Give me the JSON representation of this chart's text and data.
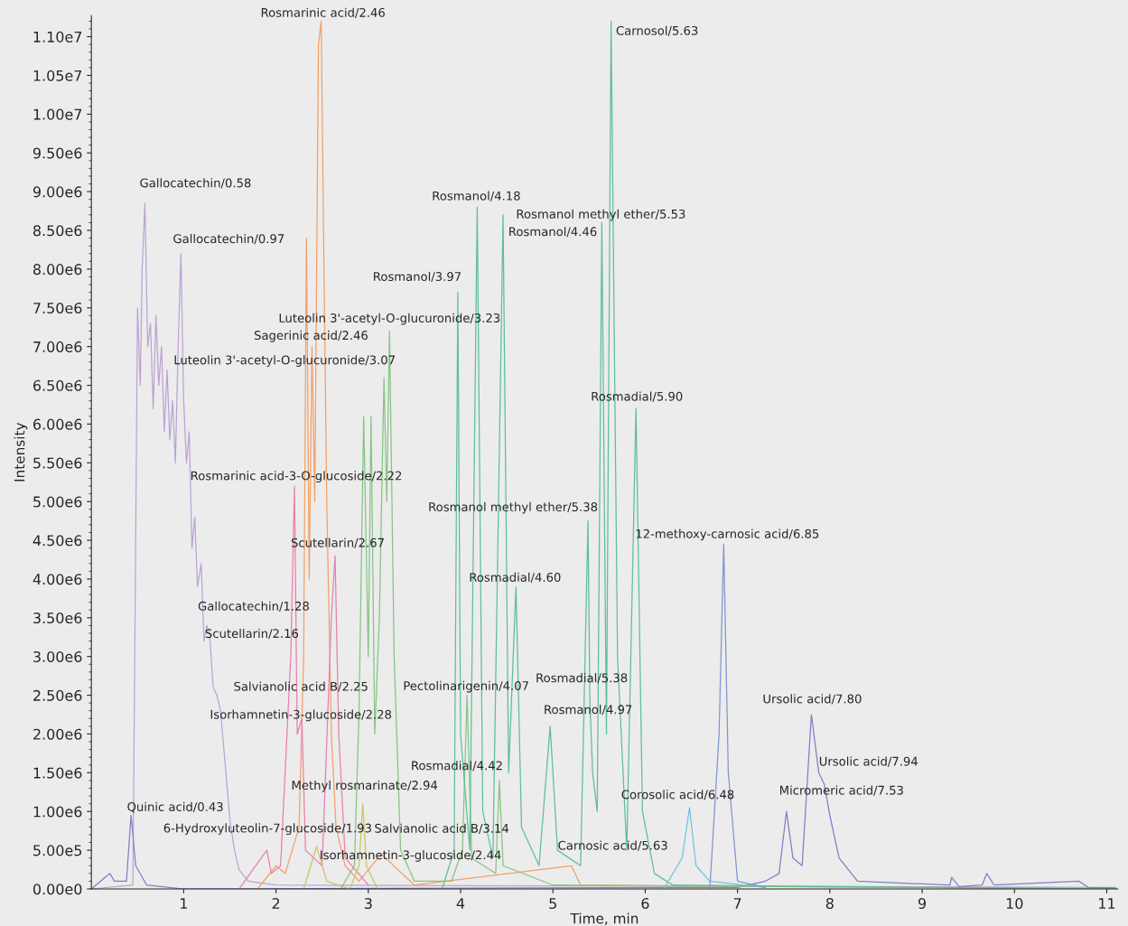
{
  "chart_data": {
    "type": "line",
    "xlabel": "Time, min",
    "ylabel": "Intensity",
    "xlim": [
      0,
      11.12
    ],
    "ylim": [
      0,
      11270000
    ],
    "xticks": [
      1,
      2,
      3,
      4,
      5,
      6,
      7,
      8,
      9,
      10,
      11
    ],
    "yticks": [
      {
        "value": 0,
        "label": "0.00e0"
      },
      {
        "value": 500000,
        "label": "5.00e5"
      },
      {
        "value": 1000000,
        "label": "1.00e6"
      },
      {
        "value": 1500000,
        "label": "1.50e6"
      },
      {
        "value": 2000000,
        "label": "2.00e6"
      },
      {
        "value": 2500000,
        "label": "2.50e6"
      },
      {
        "value": 3000000,
        "label": "3.00e6"
      },
      {
        "value": 3500000,
        "label": "3.50e6"
      },
      {
        "value": 4000000,
        "label": "4.00e6"
      },
      {
        "value": 4500000,
        "label": "4.50e6"
      },
      {
        "value": 5000000,
        "label": "5.00e6"
      },
      {
        "value": 5500000,
        "label": "5.50e6"
      },
      {
        "value": 6000000,
        "label": "6.00e6"
      },
      {
        "value": 6500000,
        "label": "6.50e6"
      },
      {
        "value": 7000000,
        "label": "7.00e6"
      },
      {
        "value": 7500000,
        "label": "7.50e6"
      },
      {
        "value": 8000000,
        "label": "8.00e6"
      },
      {
        "value": 8500000,
        "label": "8.50e6"
      },
      {
        "value": 9000000,
        "label": "9.00e6"
      },
      {
        "value": 9500000,
        "label": "9.50e6"
      },
      {
        "value": 10000000,
        "label": "1.00e7"
      },
      {
        "value": 10500000,
        "label": "1.05e7"
      },
      {
        "value": 11000000,
        "label": "1.10e7"
      }
    ],
    "grid": false,
    "legend": false,
    "marker": "none",
    "line_style": "solid",
    "series": [
      {
        "color": "#bba3d3",
        "x": [
          0.0,
          0.45,
          0.47,
          0.5,
          0.53,
          0.55,
          0.58,
          0.61,
          0.64,
          0.67,
          0.7,
          0.73,
          0.76,
          0.79,
          0.82,
          0.85,
          0.88,
          0.91,
          0.94,
          0.97,
          1.0,
          1.03,
          1.06,
          1.09,
          1.12,
          1.15,
          1.19,
          1.22,
          1.25,
          1.28,
          1.32,
          1.36,
          1.4,
          1.45,
          1.5,
          1.55,
          1.6,
          1.7,
          2.0,
          11.1
        ],
        "values": [
          0,
          50000,
          3000000,
          7500000,
          6500000,
          8000000,
          8850000,
          7000000,
          7300000,
          6200000,
          7400000,
          6500000,
          7000000,
          5900000,
          6700000,
          5800000,
          6300000,
          5500000,
          7000000,
          8200000,
          6300000,
          5500000,
          5900000,
          4400000,
          4800000,
          3900000,
          4200000,
          3200000,
          3400000,
          3300000,
          2600000,
          2500000,
          2300000,
          1600000,
          900000,
          500000,
          250000,
          100000,
          50000,
          20000
        ]
      },
      {
        "color": "#7f7fc4",
        "x": [
          0.0,
          0.2,
          0.25,
          0.38,
          0.43,
          0.48,
          0.6,
          1.0,
          7.0,
          7.3,
          7.45,
          7.53,
          7.6,
          7.7,
          7.8,
          7.88,
          7.94,
          8.0,
          8.1,
          8.3,
          9.3,
          9.32,
          9.4,
          9.65,
          9.7,
          9.78,
          10.7,
          10.8,
          11.1
        ],
        "values": [
          0,
          200000,
          100000,
          100000,
          950000,
          300000,
          50000,
          0,
          20000,
          100000,
          200000,
          1000000,
          400000,
          300000,
          2250000,
          1500000,
          1350000,
          950000,
          400000,
          100000,
          50000,
          150000,
          30000,
          50000,
          200000,
          50000,
          100000,
          20000,
          10000
        ]
      },
      {
        "color": "#f2a065",
        "x": [
          1.8,
          2.0,
          2.1,
          2.25,
          2.3,
          2.33,
          2.36,
          2.39,
          2.42,
          2.46,
          2.49,
          2.52,
          2.55,
          2.6,
          2.65,
          2.75,
          2.9,
          3.14,
          3.5,
          5.2,
          5.3,
          11.1
        ],
        "values": [
          0,
          300000,
          200000,
          800000,
          3000000,
          8400000,
          4000000,
          7000000,
          5000000,
          10900000,
          11200000,
          8000000,
          5000000,
          2000000,
          800000,
          300000,
          100000,
          450000,
          50000,
          300000,
          50000,
          0
        ]
      },
      {
        "color": "#e87fae",
        "x": [
          1.6,
          1.9,
          1.95,
          2.05,
          2.16,
          2.2,
          2.23,
          2.28,
          2.32,
          2.5,
          2.6,
          2.64,
          2.68,
          2.75,
          3.0
        ],
        "values": [
          0,
          500000,
          200000,
          300000,
          3000000,
          5200000,
          2000000,
          2200000,
          500000,
          300000,
          3500000,
          4300000,
          2000000,
          400000,
          50000
        ]
      },
      {
        "color": "#86c482",
        "x": [
          2.7,
          2.85,
          2.9,
          2.95,
          3.0,
          3.03,
          3.07,
          3.12,
          3.17,
          3.2,
          3.23,
          3.28,
          3.35,
          3.5,
          3.9,
          4.02,
          4.07,
          4.12,
          4.38,
          4.42,
          4.46,
          5.0,
          11.1
        ],
        "values": [
          0,
          300000,
          2300000,
          6100000,
          3000000,
          6100000,
          2000000,
          3500000,
          6600000,
          5000000,
          7200000,
          3000000,
          500000,
          100000,
          100000,
          500000,
          2500000,
          400000,
          200000,
          1400000,
          300000,
          50000,
          0
        ]
      },
      {
        "color": "#5dbf98",
        "x": [
          3.8,
          3.93,
          3.97,
          4.0,
          4.1,
          4.18,
          4.24,
          4.35,
          4.46,
          4.52,
          4.6,
          4.66,
          4.85,
          4.97,
          5.05,
          5.3,
          5.38,
          5.4,
          5.43,
          5.48,
          5.53,
          5.58,
          5.63,
          5.7,
          5.8,
          5.9,
          5.97,
          6.1,
          6.3,
          11.1
        ],
        "values": [
          0,
          500000,
          7700000,
          2000000,
          500000,
          8800000,
          1000000,
          400000,
          8700000,
          1500000,
          3900000,
          800000,
          300000,
          2100000,
          500000,
          300000,
          4750000,
          2450000,
          1500000,
          1000000,
          8600000,
          2000000,
          11200000,
          3000000,
          500000,
          6200000,
          1000000,
          200000,
          50000,
          0
        ]
      },
      {
        "color": "#c9c46a",
        "x": [
          2.3,
          2.44,
          2.55,
          2.8,
          2.9,
          2.94,
          2.98,
          3.1
        ],
        "values": [
          0,
          550000,
          100000,
          0,
          300000,
          1100000,
          300000,
          0
        ]
      },
      {
        "color": "#72c2de",
        "x": [
          6.2,
          6.4,
          6.48,
          6.55,
          6.7,
          7.3
        ],
        "values": [
          0,
          400000,
          1050000,
          300000,
          100000,
          20000
        ]
      },
      {
        "color": "#8394d0",
        "x": [
          6.7,
          6.8,
          6.85,
          6.9,
          7.0,
          7.3
        ],
        "values": [
          0,
          2000000,
          4450000,
          1500000,
          100000,
          20000
        ]
      }
    ],
    "annotations": [
      {
        "text": "Rosmarinic acid/2.46",
        "x": 2.49,
        "y": 11200000
      },
      {
        "text": "Carnosol/5.63",
        "x": 5.63,
        "y": 11200000
      },
      {
        "text": "Gallocatechin/0.58",
        "x": 0.58,
        "y": 8850000
      },
      {
        "text": "Gallocatechin/0.97",
        "x": 0.97,
        "y": 8200000
      },
      {
        "text": "Rosmanol/4.18",
        "x": 4.18,
        "y": 8800000
      },
      {
        "text": "Rosmanol methyl ether/5.53",
        "x": 5.53,
        "y": 8600000
      },
      {
        "text": "Rosmanol/4.46",
        "x": 4.46,
        "y": 8700000
      },
      {
        "text": "Rosmanol/3.97",
        "x": 3.97,
        "y": 7700000
      },
      {
        "text": "Luteolin 3'-acetyl-O-glucuronide/3.23",
        "x": 3.23,
        "y": 7200000
      },
      {
        "text": "Sagerinic acid/2.46",
        "x": 2.39,
        "y": 7000000
      },
      {
        "text": "Luteolin 3'-acetyl-O-glucuronide/3.07",
        "x": 3.17,
        "y": 6600000
      },
      {
        "text": "Rosmadial/5.90",
        "x": 5.9,
        "y": 6200000
      },
      {
        "text": "Rosmarinic acid-3-O-glucoside/2.22",
        "x": 2.2,
        "y": 5200000
      },
      {
        "text": "Rosmanol methyl ether/5.38",
        "x": 5.38,
        "y": 4750000
      },
      {
        "text": "12-methoxy-carnosic acid/6.85",
        "x": 6.85,
        "y": 4450000
      },
      {
        "text": "Scutellarin/2.67",
        "x": 2.64,
        "y": 4300000
      },
      {
        "text": "Rosmadial/4.60",
        "x": 4.6,
        "y": 3900000
      },
      {
        "text": "Gallocatechin/1.28",
        "x": 1.25,
        "y": 3400000
      },
      {
        "text": "Scutellarin/2.16",
        "x": 2.16,
        "y": 3000000
      },
      {
        "text": "Rosmadial/5.38",
        "x": 5.4,
        "y": 2450000
      },
      {
        "text": "Salvianolic acid B/2.25",
        "x": 2.28,
        "y": 2200000
      },
      {
        "text": "Pectolinarigenin/4.07",
        "x": 4.07,
        "y": 2500000
      },
      {
        "text": "Rosmanol/4.97",
        "x": 4.97,
        "y": 2100000
      },
      {
        "text": "Ursolic acid/7.80",
        "x": 7.8,
        "y": 2250000
      },
      {
        "text": "Isorhamnetin-3-glucoside/2.28",
        "x": 2.28,
        "y": 2200000
      },
      {
        "text": "Ursolic acid/7.94",
        "x": 7.94,
        "y": 1350000
      },
      {
        "text": "Rosmadial/4.42",
        "x": 4.42,
        "y": 1400000
      },
      {
        "text": "Methyl rosmarinate/2.94",
        "x": 2.94,
        "y": 1100000
      },
      {
        "text": "Corosolic acid/6.48",
        "x": 6.48,
        "y": 1050000
      },
      {
        "text": "Micromeric acid/7.53",
        "x": 7.53,
        "y": 1000000
      },
      {
        "text": "Quinic acid/0.43",
        "x": 0.43,
        "y": 950000
      },
      {
        "text": "6-Hydroxyluteolin-7-glucoside/1.93",
        "x": 1.9,
        "y": 500000
      },
      {
        "text": "Salvianolic acid B/3.14",
        "x": 3.14,
        "y": 450000
      },
      {
        "text": "Isorhamnetin-3-glucoside/2.44",
        "x": 2.44,
        "y": 550000
      },
      {
        "text": "Carnosic acid/5.63",
        "x": 5.2,
        "y": 300000
      }
    ]
  }
}
